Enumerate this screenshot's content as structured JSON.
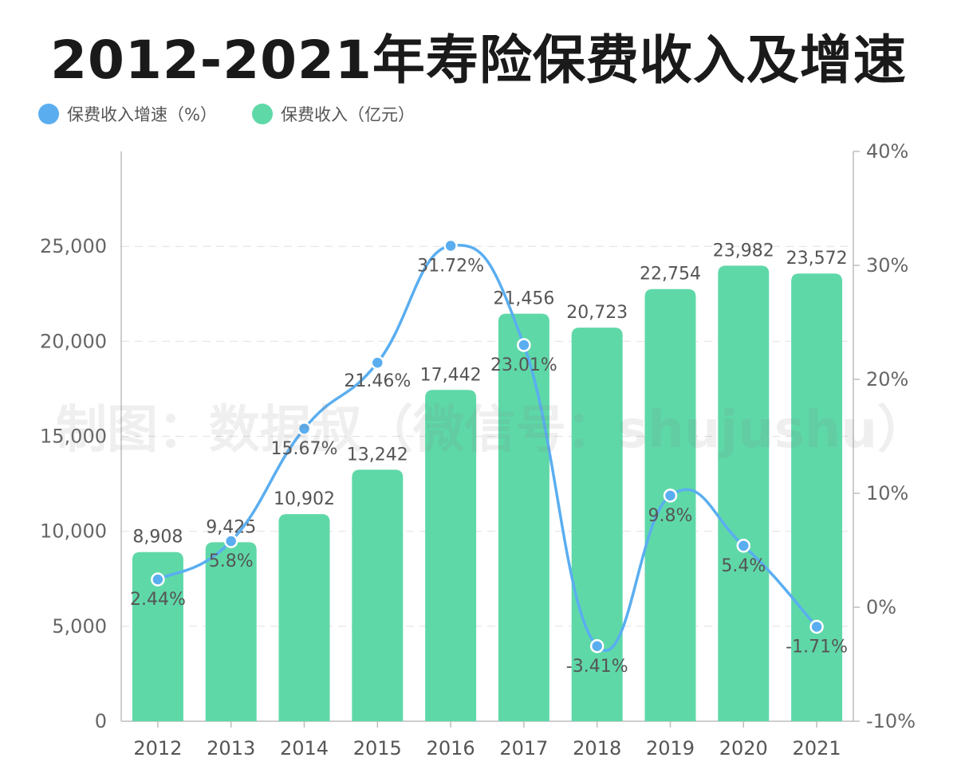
{
  "title": "2012-2021年寿险保费收入及增速",
  "watermark": "制图：数据叔（微信号：shujushu）",
  "legend": [
    {
      "label": "保费收入增速（%）",
      "color": "#5aaef0"
    },
    {
      "label": "保费收入（亿元）",
      "color": "#5fd8a8"
    }
  ],
  "chart_data": {
    "type": "bar",
    "categories": [
      "2012",
      "2013",
      "2014",
      "2015",
      "2016",
      "2017",
      "2018",
      "2019",
      "2020",
      "2021"
    ],
    "series": [
      {
        "name": "保费收入（亿元）",
        "type": "bar",
        "axis": "left",
        "values": [
          8908,
          9425,
          10902,
          13242,
          17442,
          21456,
          20723,
          22754,
          23982,
          23572
        ],
        "labels": [
          "8,908",
          "9,425",
          "10,902",
          "13,242",
          "17,442",
          "21,456",
          "20,723",
          "22,754",
          "23,982",
          "23,572"
        ],
        "color": "#5fd8a8"
      },
      {
        "name": "保费收入增速（%）",
        "type": "line",
        "axis": "right",
        "smooth": true,
        "values": [
          2.44,
          5.8,
          15.67,
          21.46,
          31.72,
          23.01,
          -3.41,
          9.8,
          5.4,
          -1.71
        ],
        "labels": [
          "2.44%",
          "5.8%",
          "15.67%",
          "21.46%",
          "31.72%",
          "23.01%",
          "-3.41%",
          "9.8%",
          "5.4%",
          "-1.71%"
        ],
        "color": "#5aaef0"
      }
    ],
    "y_left": {
      "range": [
        0,
        30000
      ],
      "ticks": [
        0,
        5000,
        10000,
        15000,
        20000,
        25000
      ],
      "tick_labels": [
        "0",
        "5,000",
        "10,000",
        "15,000",
        "20,000",
        "25,000"
      ]
    },
    "y_right": {
      "range": [
        -10,
        40
      ],
      "ticks": [
        -10,
        0,
        10,
        20,
        30,
        40
      ],
      "tick_labels": [
        "-10%",
        "0%",
        "10%",
        "20%",
        "30%",
        "40%"
      ]
    },
    "grid": true,
    "legend_position": "top-left"
  }
}
